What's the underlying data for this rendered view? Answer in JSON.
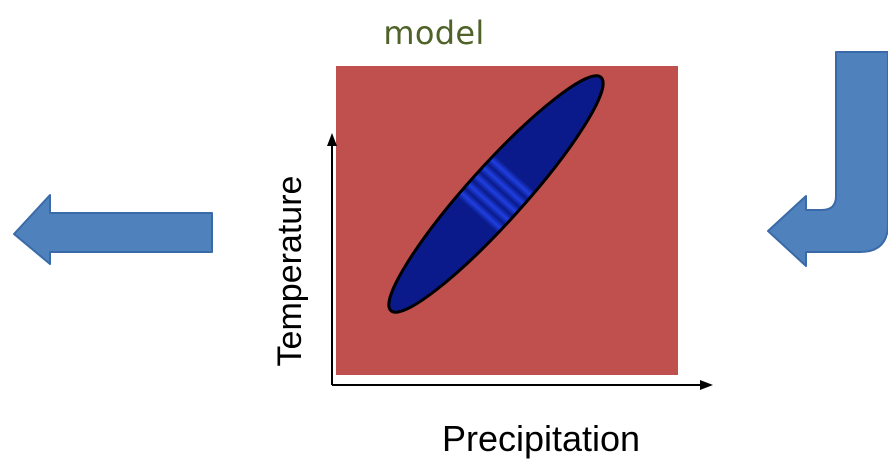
{
  "diagram": {
    "title": "model",
    "y_axis_label": "Temperature",
    "x_axis_label": "Precipitation"
  },
  "colors": {
    "title_text": "#4f6228",
    "background_panel": "#c0504d",
    "ellipse_fill": "#1f3fe0",
    "ellipse_stripe": "#0a1a8a",
    "arrow_fill": "#4f81bd",
    "arrow_stroke": "#3a6aa8",
    "axis": "#000000"
  },
  "icons": {
    "left_arrow": "left-arrow-icon",
    "right_bent_arrow": "bent-arrow-down-left-icon"
  }
}
